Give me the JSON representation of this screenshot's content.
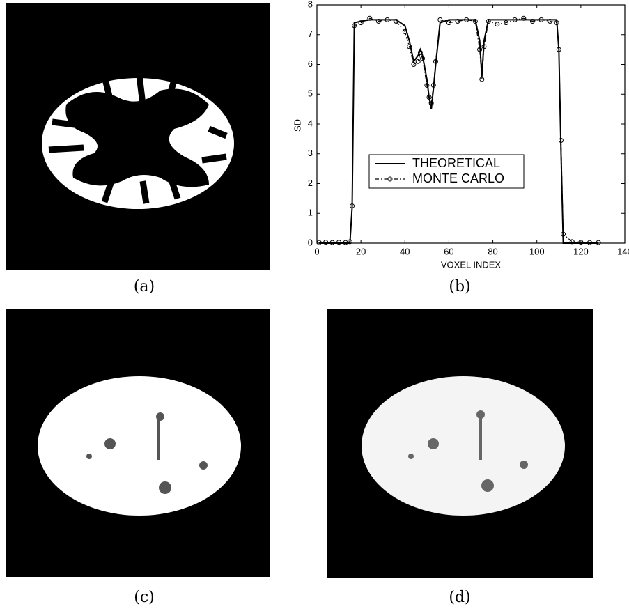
{
  "captions": [
    "(a)",
    "(b)",
    "(c)",
    "(d)"
  ],
  "chart_data": {
    "type": "line",
    "xlabel": "VOXEL INDEX",
    "ylabel": "SD",
    "x": [
      1,
      4,
      7,
      10,
      13,
      15,
      16,
      17,
      20,
      24,
      28,
      32,
      36,
      40,
      42,
      44,
      46,
      47,
      48,
      50,
      51,
      52,
      53,
      54,
      56,
      60,
      64,
      68,
      72,
      74,
      75,
      76,
      78,
      82,
      86,
      90,
      94,
      98,
      102,
      106,
      109,
      110,
      111,
      112,
      116,
      120,
      124,
      128
    ],
    "series": [
      {
        "name": "THEORETICAL",
        "color": "#000000",
        "style": "solid",
        "values": [
          0,
          0,
          0,
          0,
          0,
          0,
          1.2,
          7.4,
          7.45,
          7.5,
          7.5,
          7.5,
          7.5,
          7.3,
          6.8,
          6.1,
          6.3,
          6.5,
          6.3,
          5.5,
          4.9,
          4.5,
          5.2,
          6.0,
          7.4,
          7.5,
          7.5,
          7.5,
          7.5,
          6.8,
          5.6,
          6.8,
          7.5,
          7.5,
          7.5,
          7.5,
          7.5,
          7.5,
          7.5,
          7.5,
          7.5,
          6.5,
          3.0,
          0,
          0,
          0,
          0,
          0
        ]
      },
      {
        "name": "MONTE CARLO",
        "color": "#000000",
        "style": "dashdot",
        "marker": "circle",
        "values": [
          0.02,
          0.03,
          0.02,
          0.03,
          0.02,
          0.05,
          1.25,
          7.3,
          7.4,
          7.55,
          7.45,
          7.5,
          7.45,
          7.1,
          6.6,
          6.0,
          6.1,
          6.4,
          6.2,
          5.3,
          4.9,
          4.7,
          5.3,
          6.1,
          7.5,
          7.4,
          7.45,
          7.5,
          7.45,
          6.5,
          5.5,
          6.6,
          7.45,
          7.35,
          7.4,
          7.5,
          7.55,
          7.45,
          7.5,
          7.45,
          7.4,
          6.5,
          3.45,
          0.3,
          0.05,
          0.03,
          0.02,
          0.02
        ]
      }
    ],
    "xlim": [
      0,
      140
    ],
    "xticks": [
      0,
      20,
      40,
      60,
      80,
      100,
      120,
      140
    ],
    "ylim": [
      0,
      8
    ],
    "yticks": [
      0,
      1,
      2,
      3,
      4,
      5,
      6,
      7,
      8
    ],
    "legend": "center"
  }
}
